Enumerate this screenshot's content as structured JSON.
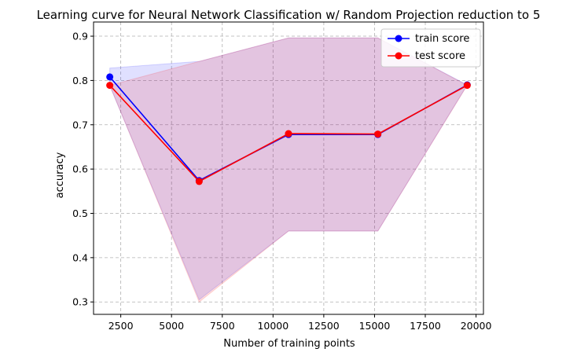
{
  "chart_data": {
    "type": "line",
    "title": "Learning curve for Neural Network Classification w/ Random Projection reduction to 5",
    "xlabel": "Number of training points",
    "ylabel": "accuracy",
    "x": [
      1959,
      6361,
      10762,
      15164,
      19565
    ],
    "xlim": [
      1159,
      20365
    ],
    "ylim": [
      0.272,
      0.932
    ],
    "xticks": [
      2500,
      5000,
      7500,
      10000,
      12500,
      15000,
      17500,
      20000
    ],
    "yticks": [
      0.3,
      0.4,
      0.5,
      0.6,
      0.7,
      0.8,
      0.9
    ],
    "grid": true,
    "legend_position": "top-right",
    "series": [
      {
        "name": "train score",
        "color": "#0000ff",
        "values": [
          0.808,
          0.574,
          0.678,
          0.678,
          0.79
        ],
        "band_upper": [
          0.828,
          0.843,
          0.896,
          0.896,
          0.79
        ],
        "band_lower": [
          0.788,
          0.305,
          0.46,
          0.46,
          0.79
        ]
      },
      {
        "name": "test score",
        "color": "#ff0000",
        "values": [
          0.789,
          0.572,
          0.68,
          0.679,
          0.789
        ],
        "band_upper": [
          0.789,
          0.843,
          0.896,
          0.896,
          0.789
        ],
        "band_lower": [
          0.789,
          0.3,
          0.46,
          0.46,
          0.789
        ]
      }
    ]
  }
}
